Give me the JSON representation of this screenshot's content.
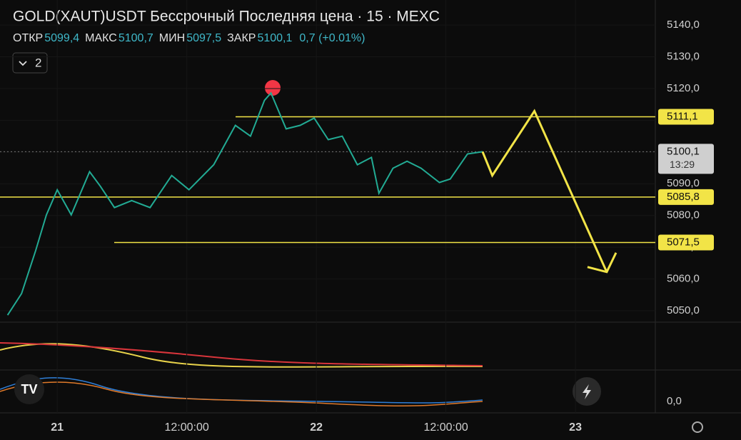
{
  "chart_data": {
    "type": "line",
    "title": "GOLD(XAUT)USDT Бессрочный Последняя цена · 15 · MEXC",
    "ohlc": [
      {
        "label": "ОТКР",
        "value": "5099,4"
      },
      {
        "label": "МАКС",
        "value": "5100,7"
      },
      {
        "label": "МИН",
        "value": "5097,5"
      },
      {
        "label": "ЗАКР",
        "value": "5100,1"
      }
    ],
    "change": "0,7 (+0.01%)",
    "indicators_badge": "2",
    "xlim": [
      -5.3,
      55.4
    ],
    "xticks": [
      {
        "value": 0,
        "label": "21"
      },
      {
        "value": 12,
        "label": "12:00:00"
      },
      {
        "value": 24,
        "label": "22"
      },
      {
        "value": 36,
        "label": "12:00:00"
      },
      {
        "value": 48,
        "label": "23"
      }
    ],
    "ylim": [
      5046.4,
      5147.9
    ],
    "yticks": [
      {
        "value": 5050,
        "label": "5050,0"
      },
      {
        "value": 5060,
        "label": "5060,0"
      },
      {
        "value": 5070,
        "label": "5070,0"
      },
      {
        "value": 5080,
        "label": "5080,0"
      },
      {
        "value": 5090,
        "label": "5090,0"
      },
      {
        "value": 5100,
        "label": "5100,0"
      },
      {
        "value": 5110,
        "label": "5110,0"
      },
      {
        "value": 5120,
        "label": "5120,0"
      },
      {
        "value": 5130,
        "label": "5130,0"
      },
      {
        "value": 5140,
        "label": "5140,0"
      }
    ],
    "x": [
      -4.6,
      -3.3,
      -2.0,
      -1.0,
      0,
      1.3,
      3.0,
      4.0,
      5.3,
      6.9,
      8.6,
      10.6,
      12.2,
      14.5,
      16.5,
      17.9,
      19.2,
      19.8,
      21.2,
      22.5,
      23.8,
      25.1,
      26.4,
      27.8,
      29.1,
      29.8,
      31.1,
      32.4,
      33.7,
      35.4,
      36.4,
      38.0,
      39.4
    ],
    "series": [
      {
        "color": "#22ab94",
        "values": [
          5048.6,
          5055.4,
          5068.9,
          5080.2,
          5088.1,
          5080.2,
          5093.8,
          5089.2,
          5082.5,
          5084.7,
          5082.5,
          5092.6,
          5088.1,
          5096.0,
          5108.4,
          5105.0,
          5116.3,
          5118.6,
          5107.3,
          5108.4,
          5110.7,
          5103.9,
          5105.0,
          5096.0,
          5098.3,
          5087.0,
          5094.9,
          5097.1,
          5094.9,
          5090.4,
          5091.5,
          5099.4,
          5100.1
        ]
      }
    ],
    "forecast": {
      "color": "#f2e447",
      "x": [
        39.4,
        40.3,
        44.2,
        50.9
      ],
      "values": [
        5100.1,
        5092.6,
        5112.9,
        5062.2
      ]
    },
    "levels": [
      {
        "value": 5111.1,
        "label": "5111,1"
      },
      {
        "value": 5085.8,
        "label": "5085,8"
      },
      {
        "value": 5071.5,
        "label": "5071,5"
      }
    ],
    "last_price": {
      "value": 5100.1,
      "label": "5100,1",
      "countdown": "13:29"
    },
    "oscillator_tick": {
      "value": 0,
      "label": "0,0"
    }
  }
}
